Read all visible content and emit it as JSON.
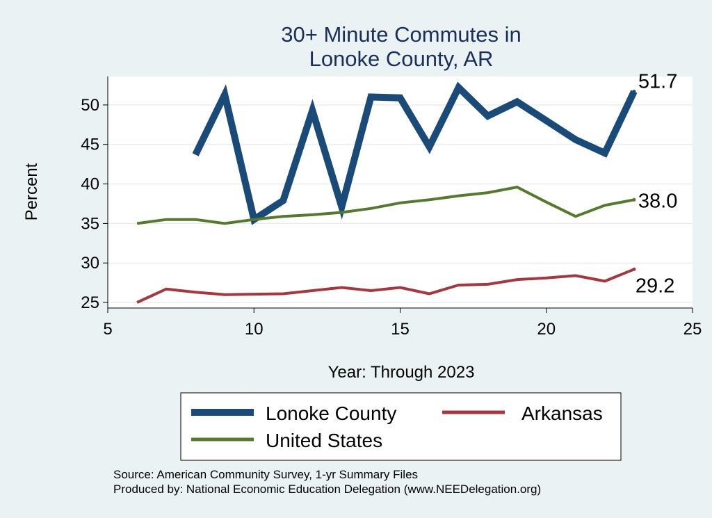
{
  "chart_data": {
    "type": "line",
    "title_lines": [
      "30+ Minute Commutes in",
      "Lonoke County, AR"
    ],
    "xlabel": "Year: Through 2023",
    "ylabel": "Percent",
    "xlim": [
      5,
      25
    ],
    "ylim": [
      24.3,
      53.6
    ],
    "xticks": [
      5,
      10,
      15,
      20,
      25
    ],
    "yticks": [
      25,
      30,
      35,
      40,
      45,
      50
    ],
    "grid": true,
    "series": [
      {
        "name": "Lonoke County",
        "color": "#1a4a78",
        "x": [
          8,
          9,
          10,
          11,
          12,
          13,
          14,
          15,
          16,
          17,
          18,
          19,
          20,
          21,
          22,
          23
        ],
        "y": [
          43.7,
          51.3,
          35.5,
          37.9,
          49.3,
          37.1,
          51.0,
          50.9,
          44.7,
          52.2,
          48.6,
          50.4,
          48.0,
          45.6,
          43.9,
          51.7
        ],
        "end_label": "51.7"
      },
      {
        "name": "Arkansas",
        "color": "#a5373e",
        "x": [
          6,
          7,
          8,
          9,
          10,
          11,
          12,
          13,
          14,
          15,
          16,
          17,
          18,
          19,
          20,
          21,
          22,
          23
        ],
        "y": [
          25.0,
          26.7,
          26.3,
          26.0,
          26.05,
          26.1,
          26.5,
          26.9,
          26.5,
          26.9,
          26.1,
          27.2,
          27.3,
          27.9,
          28.1,
          28.4,
          27.7,
          29.2
        ],
        "end_label": "29.2"
      },
      {
        "name": "United States",
        "color": "#557a2c",
        "x": [
          6,
          7,
          8,
          9,
          10,
          11,
          12,
          13,
          14,
          15,
          16,
          17,
          18,
          19,
          20,
          21,
          22,
          23
        ],
        "y": [
          35.0,
          35.5,
          35.5,
          35.0,
          35.5,
          35.9,
          36.1,
          36.4,
          36.9,
          37.6,
          38.0,
          38.5,
          38.9,
          39.6,
          37.7,
          35.9,
          37.3,
          38.0
        ],
        "end_label": "38.0"
      }
    ],
    "legend": {
      "position": "bottom",
      "entries": [
        "Lonoke County",
        "Arkansas",
        "United States"
      ]
    }
  },
  "notes": {
    "source": "Source: American Community Survey, 1-yr Summary Files",
    "producer": "Produced by: National Economic Education Delegation (www.NEEDelegation.org)"
  },
  "colors": {
    "background": "#eaf2f3",
    "plot_background": "#ffffff",
    "title": "#1a2e5a"
  }
}
